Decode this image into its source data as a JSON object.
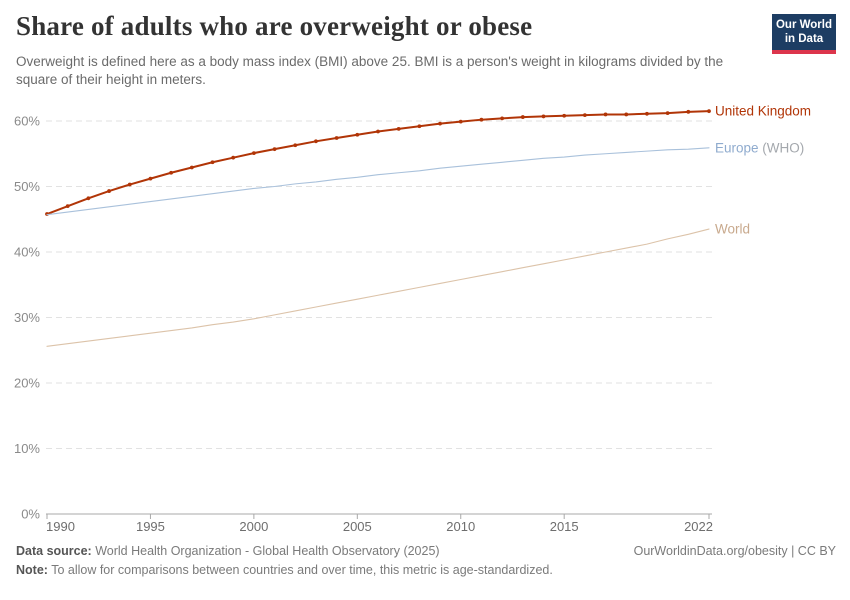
{
  "header": {
    "title": "Share of adults who are overweight or obese",
    "subtitle": "Overweight is defined here as a body mass index (BMI) above 25. BMI is a person's weight in kilograms divided by the square of their height in meters.",
    "logo_line1": "Our World",
    "logo_line2": "in Data",
    "logo_bg": "#1D3D63",
    "logo_bar": "#DC354C"
  },
  "chart_data": {
    "type": "line",
    "title": "Share of adults who are overweight or obese",
    "xlabel": "",
    "ylabel": "",
    "xlim": [
      1990,
      2022
    ],
    "ylim": [
      0,
      63
    ],
    "grid": "horizontal-dashed",
    "legend_position": "right-line-labels",
    "xticks": [
      1990,
      1995,
      2000,
      2005,
      2010,
      2015,
      2022
    ],
    "yticks": [
      0,
      10,
      20,
      30,
      40,
      50,
      60
    ],
    "ytick_suffix": "%",
    "x": [
      1990,
      1991,
      1992,
      1993,
      1994,
      1995,
      1996,
      1997,
      1998,
      1999,
      2000,
      2001,
      2002,
      2003,
      2004,
      2005,
      2006,
      2007,
      2008,
      2009,
      2010,
      2011,
      2012,
      2013,
      2014,
      2015,
      2016,
      2017,
      2018,
      2019,
      2020,
      2021,
      2022
    ],
    "series": [
      {
        "name": "United Kingdom",
        "color": "#B13507",
        "label_color": "#B13507",
        "markers": true,
        "line_width": 2,
        "values": [
          45.8,
          47.0,
          48.2,
          49.3,
          50.3,
          51.2,
          52.1,
          52.9,
          53.7,
          54.4,
          55.1,
          55.7,
          56.3,
          56.9,
          57.4,
          57.9,
          58.4,
          58.8,
          59.2,
          59.6,
          59.9,
          60.2,
          60.4,
          60.6,
          60.7,
          60.8,
          60.9,
          61.0,
          61.0,
          61.1,
          61.2,
          61.4,
          61.5
        ]
      },
      {
        "name": "Europe (WHO)",
        "label_main": "Europe",
        "label_suffix": " (WHO)",
        "color": "#A9C1DB",
        "label_color": "#8FABCE",
        "suffix_color": "#A4A8AD",
        "markers": false,
        "line_width": 1.1,
        "values": [
          45.7,
          46.1,
          46.5,
          46.9,
          47.3,
          47.7,
          48.1,
          48.5,
          48.9,
          49.3,
          49.7,
          50.0,
          50.4,
          50.7,
          51.1,
          51.4,
          51.8,
          52.1,
          52.4,
          52.8,
          53.1,
          53.4,
          53.7,
          54.0,
          54.3,
          54.5,
          54.8,
          55.0,
          55.2,
          55.4,
          55.6,
          55.7,
          55.9
        ]
      },
      {
        "name": "World",
        "color": "#DCC3A9",
        "label_color": "#C8A98D",
        "markers": false,
        "line_width": 1.1,
        "values": [
          25.6,
          26.0,
          26.4,
          26.8,
          27.2,
          27.6,
          28.0,
          28.4,
          28.9,
          29.3,
          29.8,
          30.4,
          31.0,
          31.6,
          32.2,
          32.8,
          33.4,
          34.0,
          34.6,
          35.2,
          35.8,
          36.4,
          37.0,
          37.6,
          38.2,
          38.8,
          39.4,
          40.0,
          40.6,
          41.2,
          42.0,
          42.7,
          43.5
        ]
      }
    ]
  },
  "footer": {
    "source_label": "Data source:",
    "source_text": " World Health Organization - Global Health Observatory (2025)",
    "right_text": "OurWorldinData.org/obesity | CC BY",
    "note_label": "Note:",
    "note_text": " To allow for comparisons between countries and over time, this metric is age-standardized."
  }
}
